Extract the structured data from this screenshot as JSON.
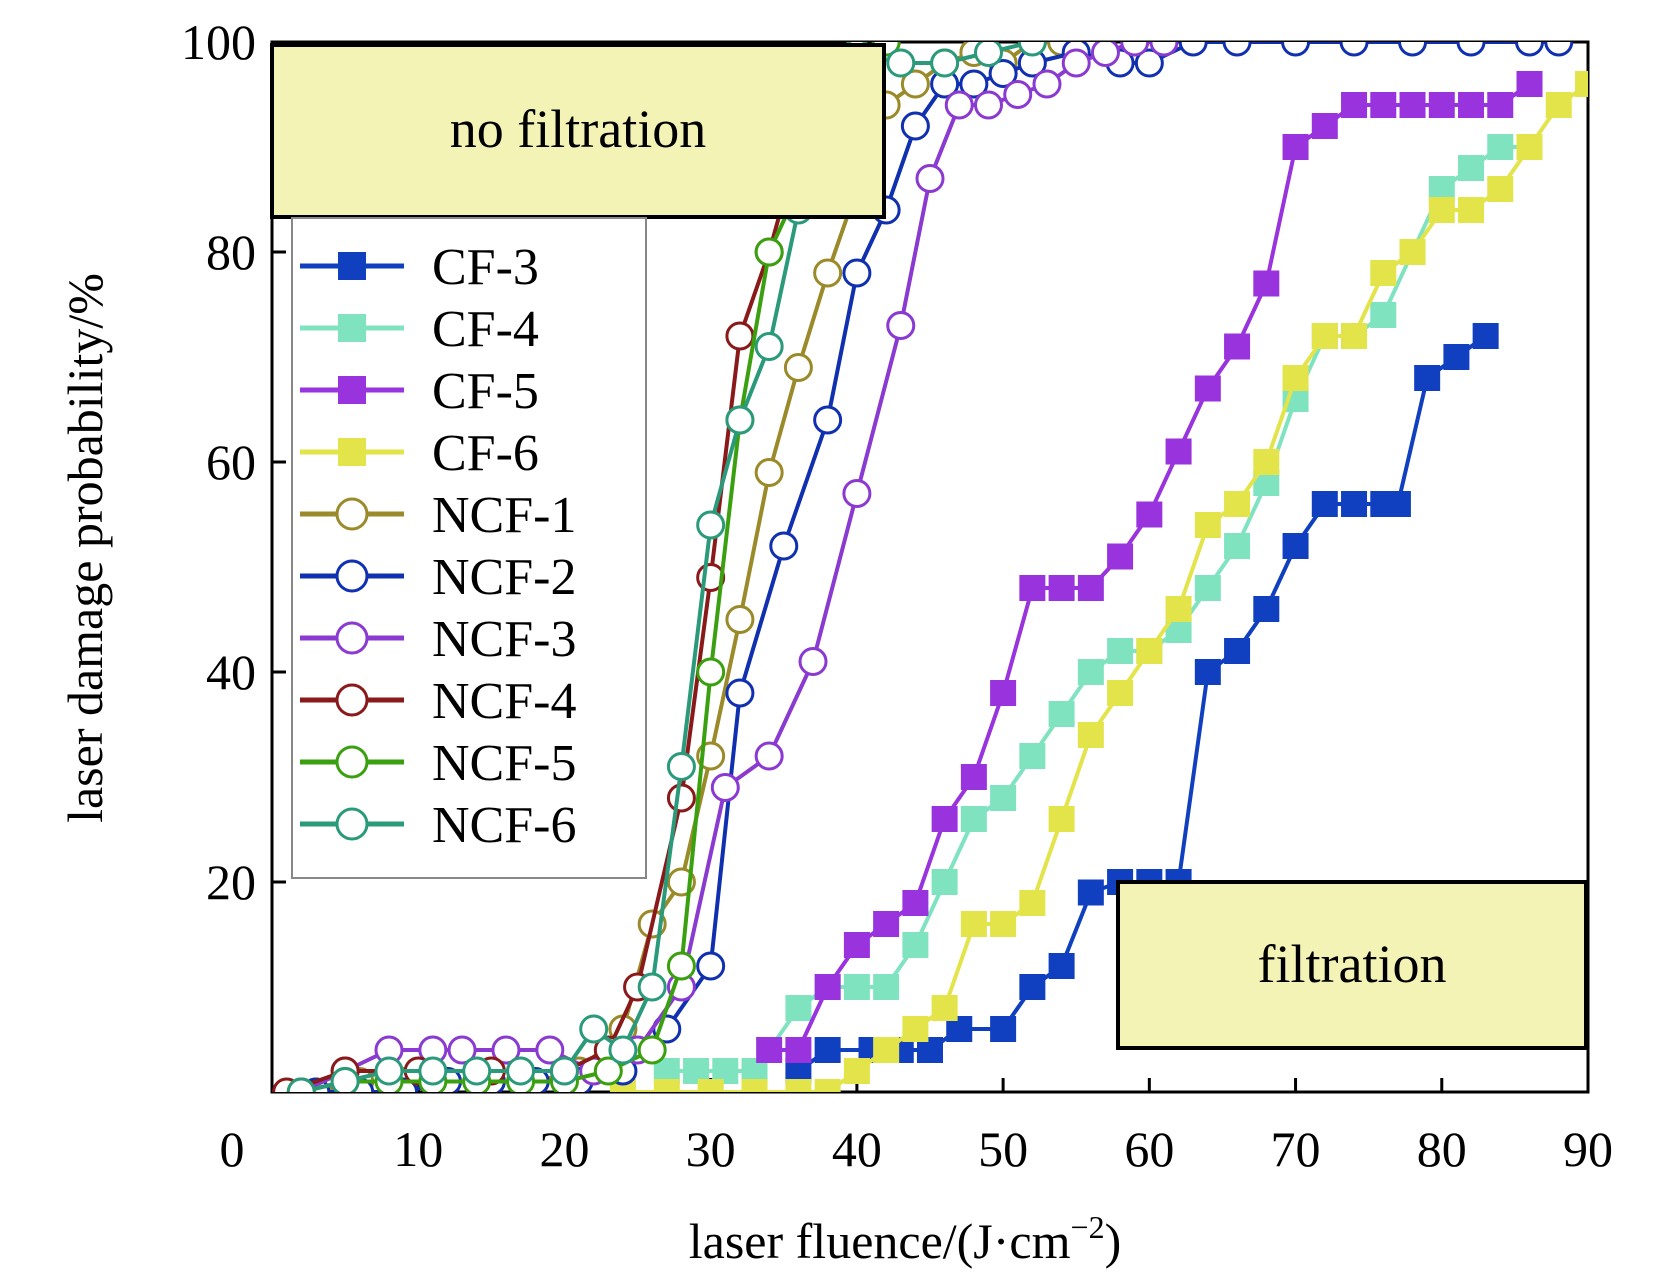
{
  "chart_data": {
    "type": "line",
    "title": "",
    "xlabel": "laser fluence/(J·cm",
    "xlabel_exponent": "−2",
    "xlabel_suffix": ")",
    "ylabel": "laser damage probability/%",
    "xlim": [
      0,
      90
    ],
    "ylim": [
      0,
      100
    ],
    "xticks": [
      "0",
      "10",
      "20",
      "30",
      "40",
      "50",
      "60",
      "70",
      "80",
      "90"
    ],
    "yticks": [
      "20",
      "40",
      "60",
      "80",
      "100"
    ],
    "grid": false,
    "legend_position": "upper-left",
    "annotations": [
      {
        "id": "no-filtration",
        "text": "no filtration"
      },
      {
        "id": "filtration",
        "text": "filtration"
      }
    ],
    "series": [
      {
        "name": "CF-3",
        "color": "#1040c0",
        "marker": "square-filled",
        "x": [
          36,
          38,
          41,
          43,
          45,
          47,
          50,
          52,
          54,
          56,
          58,
          60,
          62,
          64,
          66,
          68,
          70,
          72,
          74,
          76,
          77,
          79,
          81,
          83
        ],
        "y": [
          2,
          4,
          4,
          4,
          4,
          6,
          6,
          10,
          12,
          19,
          20,
          20,
          20,
          40,
          42,
          46,
          52,
          56,
          56,
          56,
          56,
          68,
          70,
          72
        ]
      },
      {
        "name": "CF-4",
        "color": "#7fe3c0",
        "marker": "square-filled",
        "x": [
          27,
          29,
          31,
          33,
          36,
          38,
          40,
          42,
          44,
          46,
          48,
          50,
          52,
          54,
          56,
          58,
          60,
          62,
          64,
          66,
          68,
          70,
          72,
          74,
          76,
          78,
          80,
          82,
          84,
          86
        ],
        "y": [
          2,
          2,
          2,
          2,
          8,
          10,
          10,
          10,
          14,
          20,
          26,
          28,
          32,
          36,
          40,
          42,
          42,
          44,
          48,
          52,
          58,
          66,
          72,
          72,
          74,
          80,
          86,
          88,
          90,
          90
        ]
      },
      {
        "name": "CF-5",
        "color": "#9933dd",
        "marker": "square-filled",
        "x": [
          34,
          36,
          38,
          40,
          42,
          44,
          46,
          48,
          50,
          52,
          54,
          56,
          58,
          60,
          62,
          64,
          66,
          68,
          70,
          72,
          74,
          76,
          78,
          80,
          82,
          84,
          86
        ],
        "y": [
          4,
          4,
          10,
          14,
          16,
          18,
          26,
          30,
          38,
          48,
          48,
          48,
          51,
          55,
          61,
          67,
          71,
          77,
          90,
          92,
          94,
          94,
          94,
          94,
          94,
          94,
          96
        ]
      },
      {
        "name": "CF-6",
        "color": "#e3e34a",
        "marker": "square-filled",
        "x": [
          24,
          27,
          30,
          33,
          36,
          38,
          40,
          42,
          44,
          46,
          48,
          50,
          52,
          54,
          56,
          58,
          60,
          62,
          64,
          66,
          68,
          70,
          72,
          74,
          76,
          78,
          80,
          82,
          84,
          86,
          88,
          90
        ],
        "y": [
          0,
          0,
          0,
          0,
          0,
          0,
          2,
          4,
          6,
          8,
          16,
          16,
          18,
          26,
          34,
          38,
          42,
          46,
          54,
          56,
          60,
          68,
          72,
          72,
          78,
          80,
          84,
          84,
          86,
          90,
          94,
          96
        ]
      },
      {
        "name": "NCF-1",
        "color": "#9a8a2a",
        "marker": "circle-open",
        "x": [
          3,
          6,
          9,
          12,
          15,
          18,
          21,
          24,
          26,
          28,
          30,
          32,
          34,
          36,
          38,
          40,
          42,
          44,
          46,
          48,
          50,
          52,
          54,
          56
        ],
        "y": [
          0,
          1,
          1,
          1,
          1,
          1,
          2,
          6,
          16,
          20,
          32,
          45,
          59,
          69,
          78,
          86,
          94,
          96,
          98,
          99,
          98,
          100,
          100,
          100
        ]
      },
      {
        "name": "NCF-2",
        "color": "#1030b0",
        "marker": "circle-open",
        "x": [
          3,
          6,
          9,
          12,
          15,
          18,
          21,
          24,
          27,
          30,
          32,
          35,
          38,
          40,
          42,
          44,
          46,
          48,
          50,
          52,
          55,
          58,
          60,
          63,
          66,
          70,
          74,
          78,
          82,
          86,
          88
        ],
        "y": [
          0,
          0,
          0,
          1,
          1,
          1,
          1,
          2,
          6,
          12,
          38,
          52,
          64,
          78,
          84,
          92,
          96,
          96,
          97,
          98,
          99,
          98,
          98,
          100,
          100,
          100,
          100,
          100,
          100,
          100,
          100
        ]
      },
      {
        "name": "NCF-3",
        "color": "#8a3ad0",
        "marker": "circle-open",
        "x": [
          2,
          5,
          8,
          11,
          13,
          16,
          19,
          22,
          25,
          28,
          31,
          34,
          37,
          40,
          43,
          45,
          47,
          49,
          51,
          53,
          55,
          57,
          59,
          61
        ],
        "y": [
          0,
          2,
          4,
          4,
          4,
          4,
          4,
          2,
          4,
          10,
          29,
          32,
          41,
          57,
          73,
          87,
          94,
          94,
          95,
          96,
          98,
          99,
          100,
          100
        ]
      },
      {
        "name": "NCF-4",
        "color": "#8a1a1a",
        "marker": "circle-open",
        "x": [
          1,
          5,
          10,
          15,
          20,
          23,
          25,
          28,
          30,
          32,
          34,
          36,
          38,
          40,
          42
        ],
        "y": [
          0,
          2,
          2,
          2,
          2,
          4,
          10,
          28,
          49,
          72,
          80,
          90,
          95,
          98,
          100
        ]
      },
      {
        "name": "NCF-5",
        "color": "#3aa010",
        "marker": "circle-open",
        "x": [
          2,
          5,
          8,
          11,
          14,
          17,
          20,
          23,
          26,
          28,
          30,
          32,
          34,
          36,
          38,
          40,
          42
        ],
        "y": [
          0,
          1,
          1,
          1,
          1,
          1,
          1,
          2,
          4,
          12,
          40,
          64,
          80,
          86,
          92,
          96,
          100
        ]
      },
      {
        "name": "NCF-6",
        "color": "#2a9a7a",
        "marker": "circle-open",
        "x": [
          2,
          5,
          8,
          11,
          14,
          17,
          20,
          22,
          24,
          26,
          28,
          30,
          32,
          34,
          36,
          38,
          40,
          43,
          46,
          49,
          52
        ],
        "y": [
          0,
          1,
          2,
          2,
          2,
          2,
          2,
          6,
          4,
          10,
          31,
          54,
          64,
          71,
          84,
          96,
          99,
          98,
          98,
          99,
          100
        ]
      }
    ]
  }
}
